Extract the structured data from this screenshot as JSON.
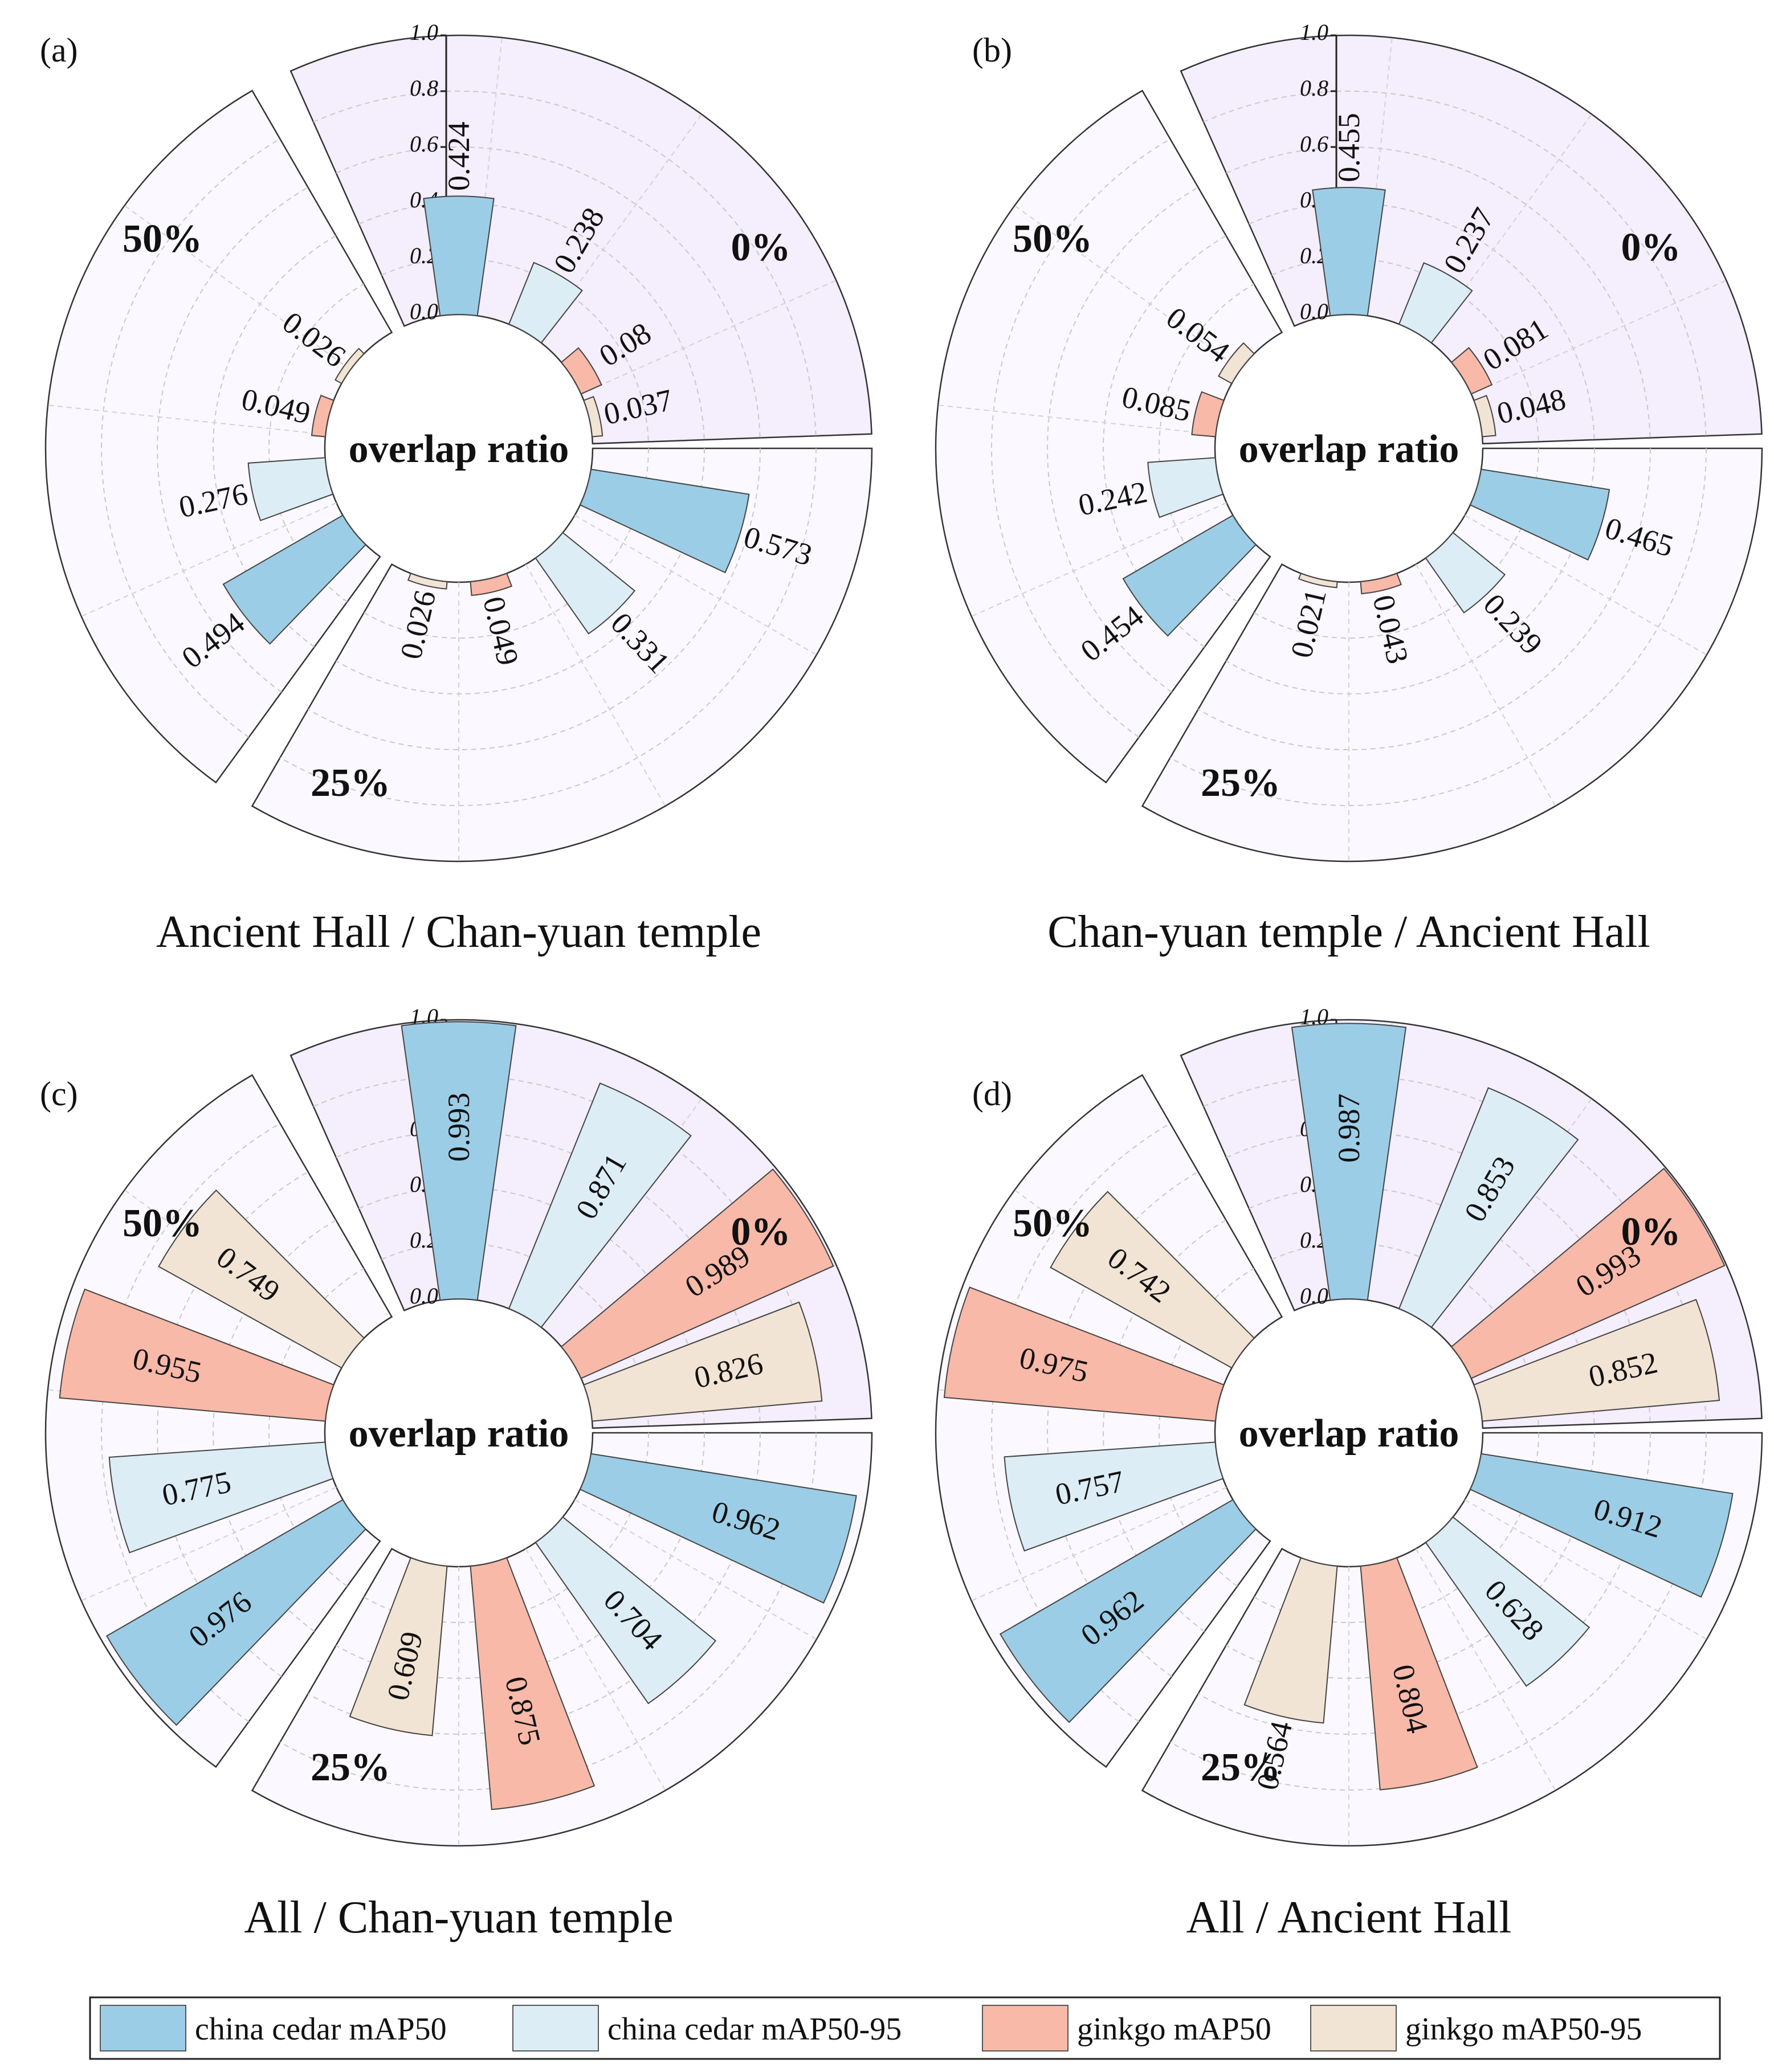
{
  "colors": {
    "china_cedar_mAP50": "#9ccde6",
    "china_cedar_mAP50_95": "#dcedf5",
    "ginkgo_mAP50": "#f8b9a8",
    "ginkgo_mAP50_95": "#f2e4d4",
    "sector_50": "#f4eefd",
    "sector_other": "#fbf9ff"
  },
  "legend": [
    {
      "label": "china cedar mAP50",
      "color_key": "china_cedar_mAP50"
    },
    {
      "label": "china cedar mAP50-95",
      "color_key": "china_cedar_mAP50_95"
    },
    {
      "label": "ginkgo mAP50",
      "color_key": "ginkgo_mAP50"
    },
    {
      "label": "ginkgo mAP50-95",
      "color_key": "ginkgo_mAP50_95"
    }
  ],
  "chart_data": [
    {
      "type": "bar",
      "panel_label": "(a)",
      "subtitle": "Ancient Hall / Chan-yuan temple",
      "center_label": "overlap ratio",
      "rlim": [
        0,
        1.0
      ],
      "ticks": [
        "0.0",
        "0.2",
        "0.4",
        "0.6",
        "0.8",
        "1.0"
      ],
      "groups": [
        {
          "label": "0%",
          "values": [
            0.573,
            0.331,
            0.049,
            0.026
          ],
          "value_labels": [
            "0.573",
            "0.331",
            "0.049",
            "0.026"
          ]
        },
        {
          "label": "25%",
          "values": [
            0.494,
            0.276,
            0.049,
            0.026
          ],
          "value_labels": [
            "0.494",
            "0.276",
            "0.049",
            "0.026"
          ]
        },
        {
          "label": "50%",
          "values": [
            0.424,
            0.238,
            0.08,
            0.037
          ],
          "value_labels": [
            "0.424",
            "0.238",
            "0.08",
            "0.037"
          ]
        }
      ]
    },
    {
      "type": "bar",
      "panel_label": "(b)",
      "subtitle": "Chan-yuan temple / Ancient Hall",
      "center_label": "overlap ratio",
      "rlim": [
        0,
        1.0
      ],
      "ticks": [
        "0.0",
        "0.2",
        "0.4",
        "0.6",
        "0.8",
        "1.0"
      ],
      "groups": [
        {
          "label": "0%",
          "values": [
            0.465,
            0.239,
            0.043,
            0.021
          ],
          "value_labels": [
            "0.465",
            "0.239",
            "0.043",
            "0.021"
          ]
        },
        {
          "label": "25%",
          "values": [
            0.454,
            0.242,
            0.085,
            0.054
          ],
          "value_labels": [
            "0.454",
            "0.242",
            "0.085",
            "0.054"
          ]
        },
        {
          "label": "50%",
          "values": [
            0.455,
            0.237,
            0.081,
            0.048
          ],
          "value_labels": [
            "0.455",
            "0.237",
            "0.081",
            "0.048"
          ]
        }
      ]
    },
    {
      "type": "bar",
      "panel_label": "(c)",
      "subtitle": "All / Chan-yuan temple",
      "center_label": "overlap ratio",
      "rlim": [
        0,
        1.0
      ],
      "ticks": [
        "0.0",
        "0.2",
        "0.4",
        "0.6",
        "0.8",
        "1.0"
      ],
      "groups": [
        {
          "label": "0%",
          "values": [
            0.962,
            0.704,
            0.875,
            0.609
          ],
          "value_labels": [
            "0.962",
            "0.704",
            "0.875",
            "0.609"
          ]
        },
        {
          "label": "25%",
          "values": [
            0.976,
            0.775,
            0.955,
            0.749
          ],
          "value_labels": [
            "0.976",
            "0.775",
            "0.955",
            "0.749"
          ]
        },
        {
          "label": "50%",
          "values": [
            0.993,
            0.871,
            0.989,
            0.826
          ],
          "value_labels": [
            "0.993",
            "0.871",
            "0.989",
            "0.826"
          ]
        }
      ]
    },
    {
      "type": "bar",
      "panel_label": "(d)",
      "subtitle": "All / Ancient Hall",
      "center_label": "overlap ratio",
      "rlim": [
        0,
        1.0
      ],
      "ticks": [
        "0.0",
        "0.2",
        "0.4",
        "0.6",
        "0.8",
        "1.0"
      ],
      "groups": [
        {
          "label": "0%",
          "values": [
            0.912,
            0.628,
            0.804,
            0.564
          ],
          "value_labels": [
            "0.912",
            "0.628",
            "0.804",
            "0.564"
          ]
        },
        {
          "label": "25%",
          "values": [
            0.962,
            0.757,
            0.975,
            0.742
          ],
          "value_labels": [
            "0.962",
            "0.757",
            "0.975",
            "0.742"
          ]
        },
        {
          "label": "50%",
          "values": [
            0.987,
            0.853,
            0.993,
            0.852
          ],
          "value_labels": [
            "0.987",
            "0.853",
            "0.993",
            "0.852"
          ]
        }
      ]
    }
  ]
}
